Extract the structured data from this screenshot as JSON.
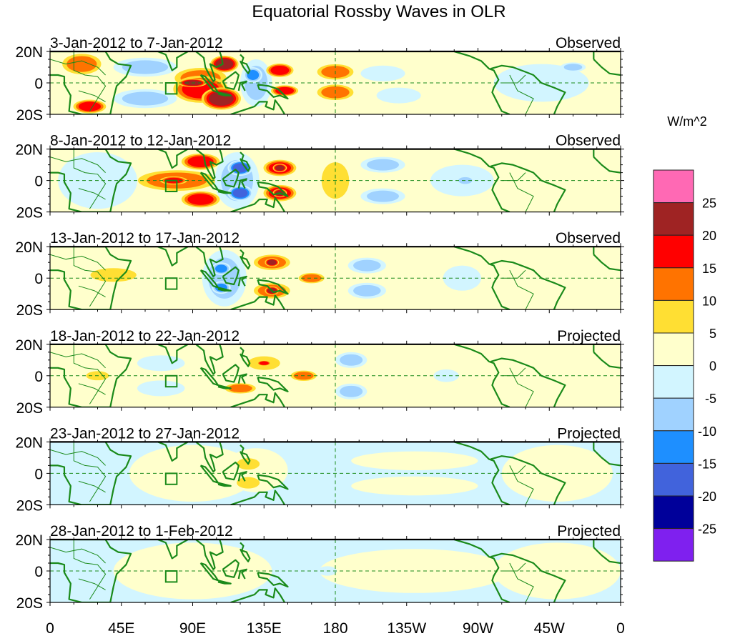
{
  "chart_data": {
    "type": "heatmap",
    "title": "Equatorial Rossby Waves in OLR",
    "units_label": "W/m^2",
    "x_range": [
      0,
      360
    ],
    "y_range": [
      -20,
      20
    ],
    "x_ticks": [
      {
        "value": 0,
        "label": "0"
      },
      {
        "value": 45,
        "label": "45E"
      },
      {
        "value": 90,
        "label": "90E"
      },
      {
        "value": 135,
        "label": "135E"
      },
      {
        "value": 180,
        "label": "180"
      },
      {
        "value": 225,
        "label": "135W"
      },
      {
        "value": 270,
        "label": "90W"
      },
      {
        "value": 315,
        "label": "45W"
      },
      {
        "value": 360,
        "label": "0"
      }
    ],
    "y_ticks": [
      {
        "value": 20,
        "label": "20N"
      },
      {
        "value": 0,
        "label": "0"
      },
      {
        "value": -20,
        "label": "20S"
      }
    ],
    "reference_lines": {
      "equator_lat": 0,
      "dateline_lon": 180
    },
    "marker_box": {
      "lon_min": 73,
      "lon_max": 80,
      "lat_min": -7,
      "lat_max": 0
    },
    "colorbar": {
      "orientation": "vertical",
      "placement": "right",
      "levels": [
        25,
        20,
        15,
        10,
        5,
        0,
        -5,
        -10,
        -15,
        -20,
        -25
      ],
      "colors": [
        "#ff69b4",
        "#9f2323",
        "#ff0000",
        "#ff7300",
        "#ffdf33",
        "#ffffcc",
        "#d2f5ff",
        "#a0d2ff",
        "#1e8fff",
        "#4163dc",
        "#00009a",
        "#7f20ef"
      ]
    },
    "panels": [
      {
        "date_range": "3-Jan-2012 to 7-Jan-2012",
        "status": "Observed",
        "background": 0,
        "features": [
          {
            "lon": 95,
            "lat": 3,
            "rlon": 20,
            "rlat": 8,
            "level": 2
          },
          {
            "lon": 110,
            "lat": 12,
            "rlon": 10,
            "rlat": 6,
            "level": 4
          },
          {
            "lon": 108,
            "lat": -10,
            "rlon": 14,
            "rlat": 8,
            "level": 4
          },
          {
            "lon": 90,
            "lat": 0,
            "rlon": 10,
            "rlat": 3,
            "level": 4
          },
          {
            "lon": 95,
            "lat": -4,
            "rlon": 20,
            "rlat": 10,
            "level": 3
          },
          {
            "lon": 145,
            "lat": 8,
            "rlon": 10,
            "rlat": 5,
            "level": 3
          },
          {
            "lon": 148,
            "lat": -5,
            "rlon": 10,
            "rlat": 4,
            "level": 3
          },
          {
            "lon": 180,
            "lat": 7,
            "rlon": 14,
            "rlat": 6,
            "level": 2
          },
          {
            "lon": 180,
            "lat": -6,
            "rlon": 14,
            "rlat": 6,
            "level": 2
          },
          {
            "lon": 20,
            "lat": 12,
            "rlon": 15,
            "rlat": 8,
            "level": 2
          },
          {
            "lon": 25,
            "lat": -15,
            "rlon": 12,
            "rlat": 5,
            "level": 3
          },
          {
            "lon": 130,
            "lat": 0,
            "rlon": 10,
            "rlat": 15,
            "level": -2
          },
          {
            "lon": 128,
            "lat": 5,
            "rlon": 6,
            "rlat": 5,
            "level": -3
          },
          {
            "lon": 60,
            "lat": 10,
            "rlon": 20,
            "rlat": 6,
            "level": -2
          },
          {
            "lon": 60,
            "lat": -10,
            "rlon": 20,
            "rlat": 6,
            "level": -2
          },
          {
            "lon": 210,
            "lat": 6,
            "rlon": 14,
            "rlat": 5,
            "level": -1
          },
          {
            "lon": 220,
            "lat": -8,
            "rlon": 14,
            "rlat": 5,
            "level": -1
          },
          {
            "lon": 310,
            "lat": 0,
            "rlon": 30,
            "rlat": 12,
            "level": -1
          },
          {
            "lon": 330,
            "lat": 10,
            "rlon": 8,
            "rlat": 3,
            "level": -2
          }
        ]
      },
      {
        "date_range": "8-Jan-2012 to 12-Jan-2012",
        "status": "Observed",
        "background": 0,
        "features": [
          {
            "lon": 80,
            "lat": 0,
            "rlon": 30,
            "rlat": 8,
            "level": 2
          },
          {
            "lon": 78,
            "lat": 0,
            "rlon": 10,
            "rlat": 3,
            "level": 3
          },
          {
            "lon": 95,
            "lat": 12,
            "rlon": 14,
            "rlat": 6,
            "level": 3
          },
          {
            "lon": 95,
            "lat": -12,
            "rlon": 14,
            "rlat": 6,
            "level": 3
          },
          {
            "lon": 145,
            "lat": 8,
            "rlon": 12,
            "rlat": 6,
            "level": 3
          },
          {
            "lon": 145,
            "lat": 8,
            "rlon": 5,
            "rlat": 3,
            "level": 4
          },
          {
            "lon": 145,
            "lat": -8,
            "rlon": 12,
            "rlat": 6,
            "level": 3
          },
          {
            "lon": 145,
            "lat": -8,
            "rlon": 5,
            "rlat": 3,
            "level": 4
          },
          {
            "lon": 180,
            "lat": 0,
            "rlon": 12,
            "rlat": 16,
            "level": 1
          },
          {
            "lon": 118,
            "lat": 0,
            "rlon": 14,
            "rlat": 18,
            "level": -2
          },
          {
            "lon": 120,
            "lat": 8,
            "rlon": 8,
            "rlat": 5,
            "level": -4
          },
          {
            "lon": 120,
            "lat": -8,
            "rlon": 8,
            "rlat": 5,
            "level": -4
          },
          {
            "lon": 210,
            "lat": 10,
            "rlon": 14,
            "rlat": 5,
            "level": -2
          },
          {
            "lon": 210,
            "lat": -10,
            "rlon": 14,
            "rlat": 5,
            "level": -2
          },
          {
            "lon": 260,
            "lat": 0,
            "rlon": 20,
            "rlat": 10,
            "level": -1
          },
          {
            "lon": 262,
            "lat": 0,
            "rlon": 6,
            "rlat": 3,
            "level": -2
          },
          {
            "lon": 30,
            "lat": 0,
            "rlon": 25,
            "rlat": 18,
            "level": -1
          }
        ]
      },
      {
        "date_range": "13-Jan-2012 to 17-Jan-2012",
        "status": "Observed",
        "background": 0,
        "features": [
          {
            "lon": 110,
            "lat": 0,
            "rlon": 14,
            "rlat": 18,
            "level": -2
          },
          {
            "lon": 108,
            "lat": 6,
            "rlon": 6,
            "rlat": 4,
            "level": -3
          },
          {
            "lon": 108,
            "lat": -6,
            "rlon": 6,
            "rlat": 4,
            "level": -3
          },
          {
            "lon": 140,
            "lat": 10,
            "rlon": 14,
            "rlat": 6,
            "level": 2
          },
          {
            "lon": 140,
            "lat": 10,
            "rlon": 5,
            "rlat": 3,
            "level": 4
          },
          {
            "lon": 140,
            "lat": -8,
            "rlon": 14,
            "rlat": 6,
            "level": 2
          },
          {
            "lon": 140,
            "lat": -8,
            "rlon": 5,
            "rlat": 3,
            "level": 4
          },
          {
            "lon": 165,
            "lat": 0,
            "rlon": 10,
            "rlat": 4,
            "level": 2
          },
          {
            "lon": 40,
            "lat": 2,
            "rlon": 20,
            "rlat": 6,
            "level": 1
          },
          {
            "lon": 200,
            "lat": 8,
            "rlon": 12,
            "rlat": 5,
            "level": -2
          },
          {
            "lon": 200,
            "lat": -8,
            "rlon": 12,
            "rlat": 5,
            "level": -2
          },
          {
            "lon": 260,
            "lat": 0,
            "rlon": 12,
            "rlat": 8,
            "level": -1
          }
        ]
      },
      {
        "date_range": "18-Jan-2012 to 22-Jan-2012",
        "status": "Projected",
        "background": 0,
        "features": [
          {
            "lon": 135,
            "lat": 8,
            "rlon": 14,
            "rlat": 6,
            "level": 1
          },
          {
            "lon": 135,
            "lat": 8,
            "rlon": 5,
            "rlat": 2,
            "level": 3
          },
          {
            "lon": 120,
            "lat": -8,
            "rlon": 12,
            "rlat": 4,
            "level": 2
          },
          {
            "lon": 160,
            "lat": 0,
            "rlon": 10,
            "rlat": 4,
            "level": 2
          },
          {
            "lon": 30,
            "lat": 0,
            "rlon": 10,
            "rlat": 4,
            "level": 1
          },
          {
            "lon": 70,
            "lat": 8,
            "rlon": 15,
            "rlat": 5,
            "level": -1
          },
          {
            "lon": 70,
            "lat": -8,
            "rlon": 15,
            "rlat": 5,
            "level": -1
          },
          {
            "lon": 190,
            "lat": 10,
            "rlon": 10,
            "rlat": 5,
            "level": -2
          },
          {
            "lon": 190,
            "lat": -10,
            "rlon": 10,
            "rlat": 5,
            "level": -2
          },
          {
            "lon": 250,
            "lat": 0,
            "rlon": 8,
            "rlat": 4,
            "level": -1
          }
        ]
      },
      {
        "date_range": "23-Jan-2012 to 27-Jan-2012",
        "status": "Projected",
        "background": -1,
        "features": [
          {
            "lon": 90,
            "lat": 0,
            "rlon": 40,
            "rlat": 18,
            "level": 0
          },
          {
            "lon": 130,
            "lat": 2,
            "rlon": 20,
            "rlat": 14,
            "level": 0
          },
          {
            "lon": 125,
            "lat": 6,
            "rlon": 10,
            "rlat": 5,
            "level": 1
          },
          {
            "lon": 125,
            "lat": -6,
            "rlon": 10,
            "rlat": 5,
            "level": 1
          },
          {
            "lon": 230,
            "lat": 8,
            "rlon": 40,
            "rlat": 6,
            "level": 0
          },
          {
            "lon": 230,
            "lat": -8,
            "rlon": 40,
            "rlat": 6,
            "level": 0
          },
          {
            "lon": 320,
            "lat": 0,
            "rlon": 35,
            "rlat": 18,
            "level": 0
          },
          {
            "lon": 175,
            "lat": 5,
            "rlon": 8,
            "rlat": 4,
            "level": -1
          },
          {
            "lon": 175,
            "lat": -5,
            "rlon": 8,
            "rlat": 4,
            "level": -1
          }
        ]
      },
      {
        "date_range": "28-Jan-2012 to 1-Feb-2012",
        "status": "Projected",
        "background": -1,
        "features": [
          {
            "lon": 90,
            "lat": 0,
            "rlon": 50,
            "rlat": 18,
            "level": 0
          },
          {
            "lon": 230,
            "lat": 0,
            "rlon": 60,
            "rlat": 14,
            "level": 0
          },
          {
            "lon": 320,
            "lat": 0,
            "rlon": 40,
            "rlat": 18,
            "level": 0
          },
          {
            "lon": 175,
            "lat": 0,
            "rlon": 6,
            "rlat": 3,
            "level": -1
          }
        ]
      }
    ]
  }
}
